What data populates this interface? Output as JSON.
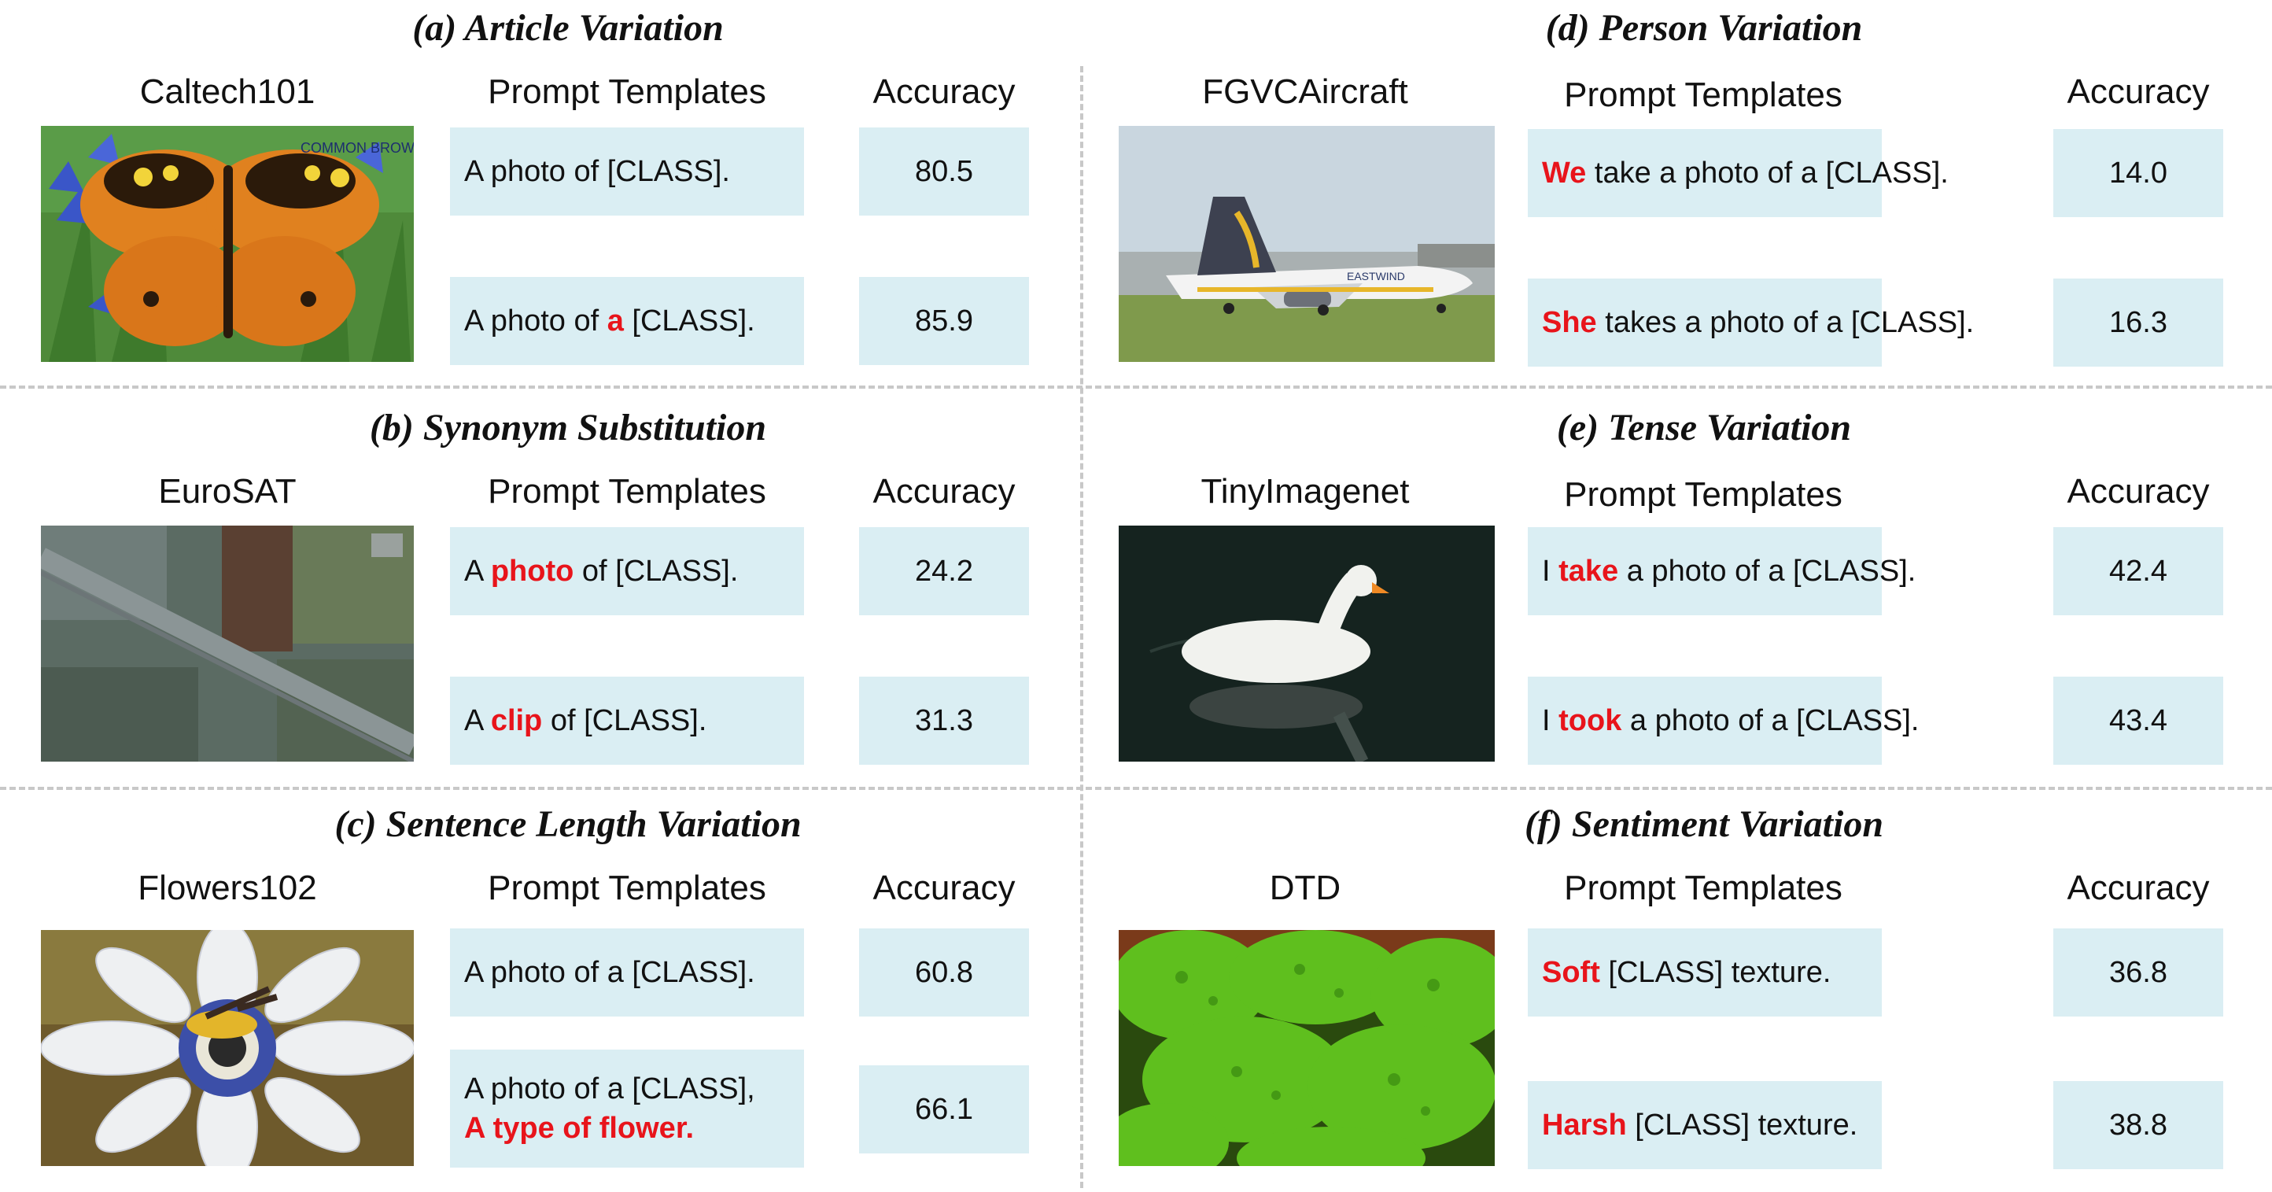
{
  "panels": {
    "a": {
      "title": "(a) Article Variation",
      "dataset": "Caltech101",
      "prompt_header": "Prompt Templates",
      "acc_header": "Accuracy",
      "image_text": "COMMON BROWN",
      "rows": [
        {
          "pre": "A photo of [CLASS].",
          "hl": "",
          "post": "",
          "acc": "80.5"
        },
        {
          "pre": "A photo of ",
          "hl": "a",
          "post": " [CLASS].",
          "acc": "85.9"
        }
      ]
    },
    "b": {
      "title": "(b) Synonym Substitution",
      "dataset": "EuroSAT",
      "prompt_header": "Prompt Templates",
      "acc_header": "Accuracy",
      "rows": [
        {
          "pre": "A ",
          "hl": "photo",
          "post": " of [CLASS].",
          "acc": "24.2"
        },
        {
          "pre": "A ",
          "hl": "clip",
          "post": " of [CLASS].",
          "acc": "31.3"
        }
      ]
    },
    "c": {
      "title": "(c) Sentence Length Variation",
      "dataset": "Flowers102",
      "prompt_header": "Prompt Templates",
      "acc_header": "Accuracy",
      "rows": [
        {
          "pre": "A photo of a [CLASS].",
          "hl": "",
          "post": "",
          "acc": "60.8"
        },
        {
          "pre": "A photo of a [CLASS],",
          "hl": "A type of flower.",
          "post": "",
          "acc": "66.1"
        }
      ]
    },
    "d": {
      "title": "(d) Person Variation",
      "dataset": "FGVCAircraft",
      "prompt_header": "Prompt Templates",
      "acc_header": "Accuracy",
      "image_text": "EASTWIND",
      "rows": [
        {
          "pre": "",
          "hl": "We",
          "post": " take a photo of a [CLASS].",
          "acc": "14.0"
        },
        {
          "pre": "",
          "hl": "She",
          "post": " takes a photo of a [CLASS].",
          "acc": "16.3"
        }
      ]
    },
    "e": {
      "title": "(e) Tense Variation",
      "dataset": "TinyImagenet",
      "prompt_header": "Prompt Templates",
      "acc_header": "Accuracy",
      "rows": [
        {
          "pre": "I ",
          "hl": "take",
          "post": " a photo of a [CLASS].",
          "acc": "42.4"
        },
        {
          "pre": "I ",
          "hl": "took",
          "post": " a photo of a [CLASS].",
          "acc": "43.4"
        }
      ]
    },
    "f": {
      "title": "(f) Sentiment Variation",
      "dataset": "DTD",
      "prompt_header": "Prompt Templates",
      "acc_header": "Accuracy",
      "rows": [
        {
          "pre": "",
          "hl": "Soft",
          "post": " [CLASS] texture.",
          "acc": "36.8"
        },
        {
          "pre": "",
          "hl": "Harsh",
          "post": " [CLASS] texture.",
          "acc": "38.8"
        }
      ]
    }
  }
}
